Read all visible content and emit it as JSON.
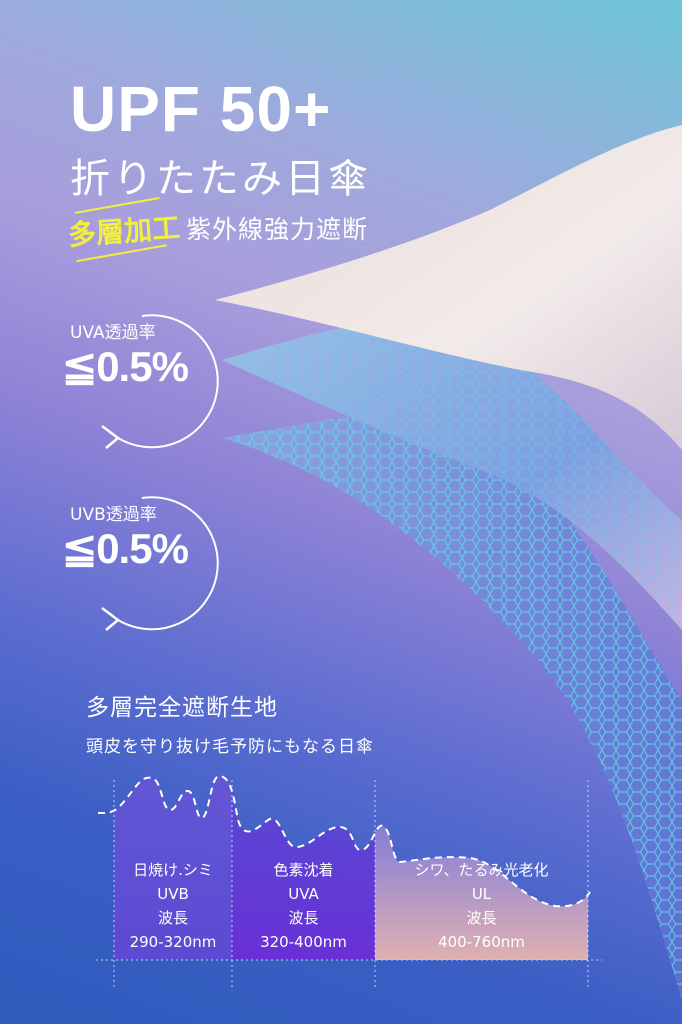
{
  "header": {
    "title": "UPF 50+",
    "subtitle": "折りたたみ日傘",
    "badge": "多層加工",
    "tagline": "紫外線強力遮断"
  },
  "stats": [
    {
      "label": "UVA透過率",
      "value": "≦0.5%"
    },
    {
      "label": "UVB透過率",
      "value": "≦0.5%"
    }
  ],
  "section": {
    "title": "多層完全遮断生地",
    "subtitle": "頭皮を守り抜け毛予防にもなる日傘"
  },
  "spectrum": [
    {
      "effect": "日焼け.シミ",
      "type": "UVB",
      "label": "波長",
      "range": "290-320nm"
    },
    {
      "effect": "色素沈着",
      "type": "UVA",
      "label": "波長",
      "range": "320-400nm"
    },
    {
      "effect": "シワ、たるみ光老化",
      "type": "UL",
      "label": "波長",
      "range": "400-760nm"
    }
  ],
  "colors": {
    "badge": "#f2f03a",
    "uva_band": "#6a2fd6",
    "ul_band": "#e0b0b0"
  }
}
